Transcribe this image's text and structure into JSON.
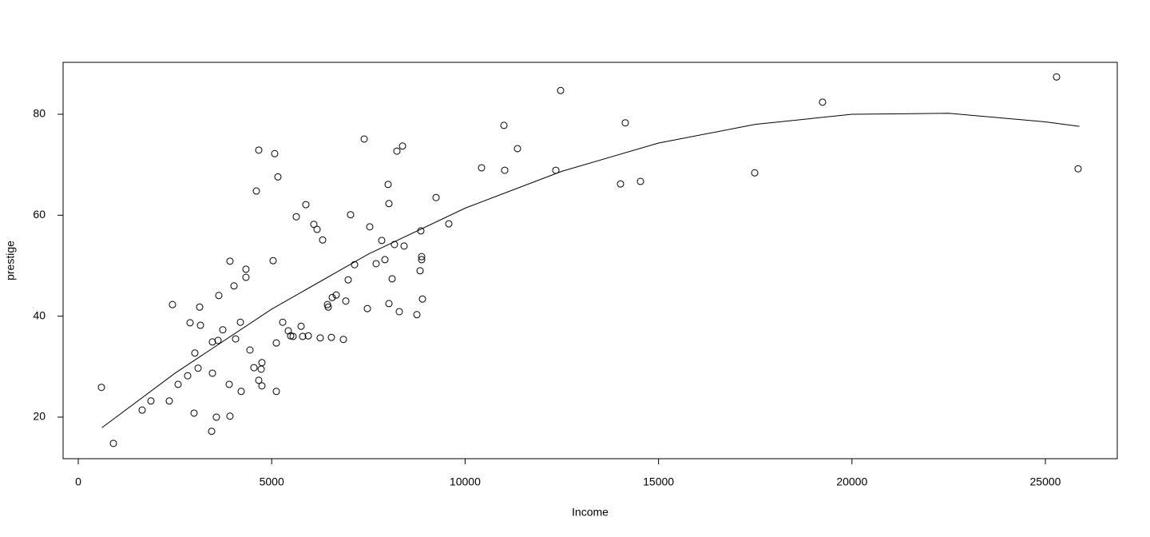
{
  "chart_data": {
    "type": "scatter",
    "x_label": "Income",
    "y_label": "prestige",
    "xlim": [
      -392,
      26858
    ],
    "ylim": [
      11.77,
      90.29
    ],
    "xticks": [
      0,
      5000,
      10000,
      15000,
      20000,
      25000
    ],
    "yticks": [
      20,
      40,
      60,
      80
    ],
    "grid": false,
    "series": [
      {
        "type": "scatter",
        "color": "#000000",
        "x": [
          599,
          908,
          1652,
          1879,
          2353,
          2436,
          2580,
          2828,
          2890,
          2993,
          3014,
          3097,
          3138,
          3159,
          3448,
          3468,
          3468,
          3571,
          3613,
          3633,
          3737,
          3902,
          3922,
          3922,
          4026,
          4067,
          4191,
          4211,
          4335,
          4335,
          4438,
          4542,
          4604,
          4666,
          4666,
          4728,
          4748,
          4748,
          5037,
          5078,
          5120,
          5120,
          5161,
          5285,
          5429,
          5491,
          5553,
          5636,
          5760,
          5801,
          5884,
          5946,
          6090,
          6173,
          6255,
          6317,
          6441,
          6462,
          6544,
          6565,
          6668,
          6854,
          6916,
          6978,
          7040,
          7143,
          7391,
          7473,
          7535,
          7700,
          7845,
          7927,
          8010,
          8031,
          8031,
          8113,
          8175,
          8237,
          8299,
          8382,
          8423,
          8753,
          8836,
          8856,
          8877,
          8877,
          8898,
          9249,
          9579,
          10425,
          11004,
          11024,
          11354,
          12345,
          12469,
          14017,
          14141,
          14533,
          17486,
          19240,
          25289,
          25846
        ],
        "values": [
          25.9,
          14.8,
          21.4,
          23.2,
          23.2,
          42.3,
          26.5,
          28.2,
          38.7,
          20.8,
          32.7,
          29.7,
          41.8,
          38.2,
          17.2,
          34.9,
          28.7,
          20.0,
          35.2,
          44.1,
          37.3,
          26.5,
          20.2,
          50.9,
          46.0,
          35.5,
          38.8,
          25.1,
          47.7,
          49.3,
          33.3,
          29.8,
          64.8,
          72.9,
          27.3,
          29.5,
          30.8,
          26.2,
          51.0,
          72.2,
          34.7,
          25.1,
          67.6,
          38.8,
          37.1,
          36.1,
          36.0,
          59.7,
          38.0,
          36.0,
          62.1,
          36.1,
          58.2,
          57.2,
          35.7,
          55.1,
          42.3,
          41.8,
          35.8,
          43.7,
          44.2,
          35.4,
          43.0,
          47.2,
          60.1,
          50.2,
          75.1,
          41.5,
          57.7,
          50.4,
          55.0,
          51.2,
          66.1,
          42.5,
          62.3,
          47.4,
          54.2,
          72.7,
          40.9,
          73.7,
          53.9,
          40.3,
          49.0,
          56.9,
          51.2,
          51.8,
          43.4,
          63.5,
          58.3,
          69.4,
          77.8,
          68.9,
          73.2,
          68.9,
          84.7,
          66.2,
          78.3,
          66.7,
          68.4,
          82.4,
          87.4,
          69.2
        ]
      },
      {
        "type": "line",
        "color": "#000000",
        "x": [
          611,
          2500,
          5000,
          7500,
          10000,
          12500,
          15000,
          17500,
          20000,
          22500,
          25000,
          25879
        ],
        "values": [
          17.9,
          28.7,
          41.4,
          52.3,
          61.4,
          68.7,
          74.3,
          78.0,
          80.0,
          80.2,
          78.5,
          77.6
        ]
      }
    ]
  }
}
